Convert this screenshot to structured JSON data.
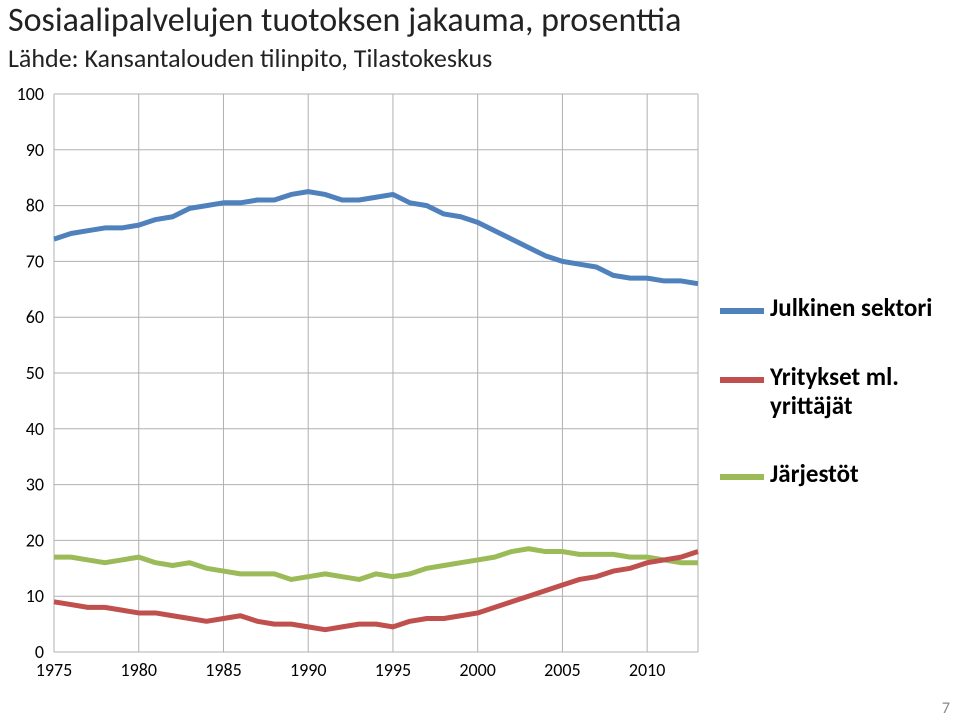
{
  "title": "Sosiaalipalvelujen tuotoksen jakauma, prosenttia",
  "subtitle": "Lähde: Kansantalouden tilinpito, Tilastokeskus",
  "page_number": "7",
  "chart": {
    "type": "line",
    "background_color": "#ffffff",
    "grid_color": "#b0b0b0",
    "axis_text_color": "#000000",
    "axis_fontsize": 18,
    "xlim": [
      1975,
      2013
    ],
    "ylim": [
      0,
      100
    ],
    "ytick_step": 10,
    "xticks": [
      1975,
      1980,
      1985,
      1990,
      1995,
      2000,
      2005,
      2010
    ],
    "line_width": 5,
    "series": [
      {
        "id": "julkinen",
        "label": "Julkinen sektori",
        "color": "#4f81bd",
        "points": [
          [
            1975,
            74
          ],
          [
            1976,
            75
          ],
          [
            1977,
            75.5
          ],
          [
            1978,
            76
          ],
          [
            1979,
            76
          ],
          [
            1980,
            76.5
          ],
          [
            1981,
            77.5
          ],
          [
            1982,
            78
          ],
          [
            1983,
            79.5
          ],
          [
            1984,
            80
          ],
          [
            1985,
            80.5
          ],
          [
            1986,
            80.5
          ],
          [
            1987,
            81
          ],
          [
            1988,
            81
          ],
          [
            1989,
            82
          ],
          [
            1990,
            82.5
          ],
          [
            1991,
            82
          ],
          [
            1992,
            81
          ],
          [
            1993,
            81
          ],
          [
            1994,
            81.5
          ],
          [
            1995,
            82
          ],
          [
            1996,
            80.5
          ],
          [
            1997,
            80
          ],
          [
            1998,
            78.5
          ],
          [
            1999,
            78
          ],
          [
            2000,
            77
          ],
          [
            2001,
            75.5
          ],
          [
            2002,
            74
          ],
          [
            2003,
            72.5
          ],
          [
            2004,
            71
          ],
          [
            2005,
            70
          ],
          [
            2006,
            69.5
          ],
          [
            2007,
            69
          ],
          [
            2008,
            67.5
          ],
          [
            2009,
            67
          ],
          [
            2010,
            67
          ],
          [
            2011,
            66.5
          ],
          [
            2012,
            66.5
          ],
          [
            2013,
            66
          ]
        ]
      },
      {
        "id": "jarjestot",
        "label": "Järjestöt",
        "color": "#9bbb59",
        "points": [
          [
            1975,
            17
          ],
          [
            1976,
            17
          ],
          [
            1977,
            16.5
          ],
          [
            1978,
            16
          ],
          [
            1979,
            16.5
          ],
          [
            1980,
            17
          ],
          [
            1981,
            16
          ],
          [
            1982,
            15.5
          ],
          [
            1983,
            16
          ],
          [
            1984,
            15
          ],
          [
            1985,
            14.5
          ],
          [
            1986,
            14
          ],
          [
            1987,
            14
          ],
          [
            1988,
            14
          ],
          [
            1989,
            13
          ],
          [
            1990,
            13.5
          ],
          [
            1991,
            14
          ],
          [
            1992,
            13.5
          ],
          [
            1993,
            13
          ],
          [
            1994,
            14
          ],
          [
            1995,
            13.5
          ],
          [
            1996,
            14
          ],
          [
            1997,
            15
          ],
          [
            1998,
            15.5
          ],
          [
            1999,
            16
          ],
          [
            2000,
            16.5
          ],
          [
            2001,
            17
          ],
          [
            2002,
            18
          ],
          [
            2003,
            18.5
          ],
          [
            2004,
            18
          ],
          [
            2005,
            18
          ],
          [
            2006,
            17.5
          ],
          [
            2007,
            17.5
          ],
          [
            2008,
            17.5
          ],
          [
            2009,
            17
          ],
          [
            2010,
            17
          ],
          [
            2011,
            16.5
          ],
          [
            2012,
            16
          ],
          [
            2013,
            16
          ]
        ]
      },
      {
        "id": "yritykset",
        "label": "Yritykset ml. yrittäjät",
        "color": "#c0504d",
        "points": [
          [
            1975,
            9
          ],
          [
            1976,
            8.5
          ],
          [
            1977,
            8
          ],
          [
            1978,
            8
          ],
          [
            1979,
            7.5
          ],
          [
            1980,
            7
          ],
          [
            1981,
            7
          ],
          [
            1982,
            6.5
          ],
          [
            1983,
            6
          ],
          [
            1984,
            5.5
          ],
          [
            1985,
            6
          ],
          [
            1986,
            6.5
          ],
          [
            1987,
            5.5
          ],
          [
            1988,
            5
          ],
          [
            1989,
            5
          ],
          [
            1990,
            4.5
          ],
          [
            1991,
            4
          ],
          [
            1992,
            4.5
          ],
          [
            1993,
            5
          ],
          [
            1994,
            5
          ],
          [
            1995,
            4.5
          ],
          [
            1996,
            5.5
          ],
          [
            1997,
            6
          ],
          [
            1998,
            6
          ],
          [
            1999,
            6.5
          ],
          [
            2000,
            7
          ],
          [
            2001,
            8
          ],
          [
            2002,
            9
          ],
          [
            2003,
            10
          ],
          [
            2004,
            11
          ],
          [
            2005,
            12
          ],
          [
            2006,
            13
          ],
          [
            2007,
            13.5
          ],
          [
            2008,
            14.5
          ],
          [
            2009,
            15
          ],
          [
            2010,
            16
          ],
          [
            2011,
            16.5
          ],
          [
            2012,
            17
          ],
          [
            2013,
            18
          ]
        ]
      }
    ]
  },
  "legend": {
    "items": [
      {
        "series": "julkinen",
        "label": "Julkinen sektori"
      },
      {
        "series": "yritykset",
        "label": "Yritykset ml. yrittäjät"
      },
      {
        "series": "jarjestot",
        "label": "Järjestöt"
      }
    ]
  }
}
